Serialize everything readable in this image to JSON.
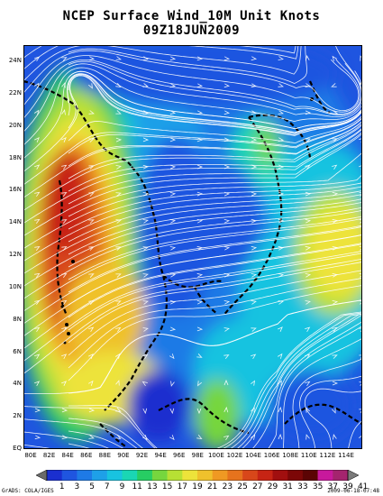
{
  "title": "NCEP Surface Wind_10M Unit Knots",
  "subtitle": "09Z18JUN2009",
  "y_axis_labels": [
    "24N",
    "22N",
    "20N",
    "18N",
    "16N",
    "14N",
    "12N",
    "10N",
    "8N",
    "6N",
    "4N",
    "2N",
    "EQ"
  ],
  "x_axis_labels": [
    "80E",
    "82E",
    "84E",
    "86E",
    "88E",
    "90E",
    "92E",
    "94E",
    "96E",
    "98E",
    "100E",
    "102E",
    "104E",
    "106E",
    "108E",
    "110E",
    "112E",
    "114E"
  ],
  "colorbar": {
    "values": [
      "1",
      "3",
      "5",
      "7",
      "9",
      "11",
      "13",
      "15",
      "17",
      "19",
      "21",
      "23",
      "25",
      "27",
      "29",
      "31",
      "33",
      "35",
      "37",
      "39",
      "41"
    ],
    "colors": [
      "#6a6a6a",
      "#1a2fcf",
      "#1f55e0",
      "#1e7ae6",
      "#1ea0e8",
      "#18c3e0",
      "#1ad6b4",
      "#27cd63",
      "#76d63e",
      "#b7e034",
      "#ede33a",
      "#efc12c",
      "#ef9923",
      "#e6731d",
      "#d8471a",
      "#c72414",
      "#a10f0f",
      "#7c0707",
      "#5b0404",
      "#c8199c",
      "#a4246e",
      "#7a7a7a"
    ]
  },
  "credit_left": "GrADS: COLA/IGES",
  "credit_right": "2009-06-18-07:48"
}
